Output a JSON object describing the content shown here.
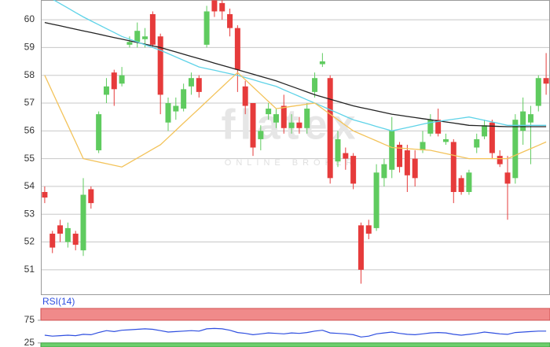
{
  "chart_data": [
    {
      "type": "candlestick",
      "watermark": "flatex",
      "watermark_subtitle": "ONLINE BROKER",
      "ylim": [
        50.09,
        60.71
      ],
      "yticks": [
        51,
        52,
        53,
        54,
        55,
        56,
        57,
        58,
        59,
        60
      ],
      "grid": true,
      "up_color": "#5fcb5f",
      "down_color": "#e63b3b",
      "open": [
        53.8,
        52.3,
        52.6,
        52.0,
        52.3,
        51.7,
        53.9,
        55.3,
        57.3,
        58.1,
        57.7,
        59.1,
        59.2,
        59.3,
        60.2,
        59.4,
        56.3,
        56.7,
        56.8,
        57.6,
        57.9,
        59.1,
        60.7,
        60.6,
        60.2,
        59.7,
        57.6,
        57.0,
        55.7,
        56.6,
        56.3,
        56.9,
        56.1,
        56.3,
        56.1,
        57.4,
        58.4,
        57.9,
        54.9,
        55.2,
        55.1,
        52.6,
        52.6,
        52.5,
        54.3,
        54.6,
        55.5,
        55.3,
        55.0,
        55.3,
        55.9,
        56.4,
        55.6,
        55.6,
        54.3,
        53.8,
        55.4,
        55.8,
        56.3,
        55.1,
        54.5,
        54.3,
        56.0,
        56.3,
        56.9,
        57.9
      ],
      "high": [
        54.0,
        52.4,
        52.8,
        52.7,
        52.4,
        54.3,
        54.0,
        56.7,
        57.9,
        58.2,
        58.3,
        59.4,
        59.9,
        59.7,
        60.3,
        59.5,
        57.2,
        57.2,
        57.7,
        58.1,
        58.0,
        60.5,
        60.7,
        60.7,
        60.4,
        59.8,
        57.8,
        57.0,
        56.2,
        57.0,
        56.8,
        57.3,
        56.6,
        56.5,
        57.0,
        58.1,
        58.8,
        58.0,
        56.0,
        55.4,
        55.2,
        52.7,
        52.8,
        54.8,
        55.0,
        56.5,
        55.6,
        55.5,
        55.3,
        56.0,
        56.6,
        56.8,
        55.9,
        55.7,
        54.4,
        54.6,
        55.9,
        56.4,
        56.4,
        55.3,
        55.1,
        56.6,
        57.2,
        56.9,
        58.0,
        58.8
      ],
      "low": [
        53.4,
        51.6,
        52.0,
        51.8,
        51.7,
        51.5,
        53.2,
        55.2,
        57.0,
        56.9,
        57.6,
        59.0,
        59.0,
        59.0,
        59.0,
        56.6,
        56.0,
        56.4,
        56.7,
        57.3,
        57.2,
        59.0,
        60.1,
        60.0,
        59.4,
        57.4,
        56.6,
        55.1,
        55.3,
        56.4,
        56.1,
        55.9,
        55.9,
        55.9,
        55.9,
        57.2,
        58.3,
        54.1,
        54.7,
        54.6,
        53.9,
        50.5,
        52.1,
        52.4,
        54.0,
        54.3,
        54.5,
        53.8,
        54.0,
        55.2,
        55.8,
        55.8,
        55.5,
        53.4,
        53.7,
        53.7,
        55.2,
        55.7,
        55.0,
        54.7,
        52.8,
        54.1,
        55.5,
        54.8,
        56.7,
        57.3
      ],
      "close": [
        53.6,
        51.8,
        52.3,
        52.5,
        51.9,
        53.7,
        53.4,
        56.6,
        57.6,
        57.5,
        58.0,
        59.2,
        59.6,
        59.4,
        59.1,
        57.3,
        57.0,
        56.9,
        57.5,
        57.9,
        57.4,
        60.3,
        60.3,
        60.3,
        59.7,
        58.2,
        56.9,
        55.4,
        56.0,
        56.8,
        56.6,
        56.1,
        56.3,
        56.1,
        56.8,
        57.9,
        58.5,
        54.3,
        55.7,
        55.0,
        54.1,
        51.0,
        52.3,
        54.5,
        54.8,
        56.0,
        54.7,
        54.4,
        54.3,
        55.6,
        56.4,
        55.9,
        55.7,
        53.8,
        53.8,
        54.5,
        55.7,
        56.2,
        55.2,
        54.8,
        54.1,
        56.4,
        56.7,
        56.6,
        57.9,
        57.7
      ],
      "series": [
        {
          "color": "#222222",
          "values": [
            59.9,
            59.84,
            59.78,
            59.72,
            59.66,
            59.6,
            59.54,
            59.48,
            59.42,
            59.36,
            59.3,
            59.24,
            59.18,
            59.12,
            59.06,
            59.0,
            58.92,
            58.84,
            58.76,
            58.68,
            58.6,
            58.52,
            58.44,
            58.36,
            58.28,
            58.2,
            58.12,
            58.04,
            57.96,
            57.88,
            57.8,
            57.7,
            57.6,
            57.5,
            57.4,
            57.3,
            57.22,
            57.14,
            57.06,
            56.98,
            56.9,
            56.84,
            56.78,
            56.72,
            56.66,
            56.6,
            56.56,
            56.52,
            56.48,
            56.44,
            56.4,
            56.36,
            56.32,
            56.28,
            56.24,
            56.2,
            56.19,
            56.18,
            56.17,
            56.16,
            56.15,
            56.15,
            56.15,
            56.15,
            56.15,
            56.15
          ]
        },
        {
          "color": "#5fd3e8",
          "values": [
            60.9,
            60.74,
            60.58,
            60.42,
            60.26,
            60.1,
            59.96,
            59.82,
            59.68,
            59.54,
            59.4,
            59.3,
            59.2,
            59.1,
            59.0,
            58.9,
            58.78,
            58.66,
            58.54,
            58.42,
            58.3,
            58.24,
            58.18,
            58.12,
            58.06,
            58.0,
            57.92,
            57.84,
            57.76,
            57.68,
            57.6,
            57.48,
            57.36,
            57.24,
            57.12,
            57.0,
            56.88,
            56.76,
            56.64,
            56.52,
            56.4,
            56.32,
            56.24,
            56.16,
            56.08,
            56.0,
            56.06,
            56.12,
            56.18,
            56.24,
            56.3,
            56.34,
            56.38,
            56.42,
            56.46,
            56.5,
            56.44,
            56.38,
            56.32,
            56.26,
            56.2,
            56.2,
            56.2,
            56.2,
            56.2,
            56.2
          ]
        },
        {
          "color": "#f3c35a",
          "values": [
            58.0,
            57.4,
            56.8,
            56.2,
            55.6,
            55.0,
            54.94,
            54.88,
            54.82,
            54.76,
            54.7,
            54.86,
            55.02,
            55.18,
            55.34,
            55.5,
            55.76,
            56.02,
            56.28,
            56.54,
            56.8,
            57.06,
            57.32,
            57.58,
            57.84,
            58.1,
            57.84,
            57.58,
            57.32,
            57.06,
            56.8,
            56.84,
            56.88,
            56.92,
            56.96,
            57.0,
            56.8,
            56.6,
            56.4,
            56.2,
            56.0,
            55.88,
            55.76,
            55.64,
            55.52,
            55.4,
            55.38,
            55.36,
            55.34,
            55.32,
            55.3,
            55.24,
            55.18,
            55.12,
            55.06,
            55.0,
            55.0,
            55.0,
            55.0,
            55.0,
            55.0,
            55.12,
            55.24,
            55.36,
            55.48,
            55.6
          ]
        }
      ]
    },
    {
      "type": "line",
      "title": "RSI(14)",
      "ylim": [
        16,
        101
      ],
      "yticks": [
        75,
        25
      ],
      "upper_band_color": "#f08a8a",
      "lower_band_color": "#6ccf6c",
      "series": [
        {
          "color": "#2f4fe0",
          "values": [
            42,
            40,
            41,
            42,
            41,
            44,
            43,
            48,
            52,
            50,
            53,
            54,
            55,
            56,
            55,
            52,
            49,
            50,
            51,
            52,
            51,
            56,
            57,
            56,
            53,
            48,
            46,
            43,
            45,
            47,
            46,
            45,
            47,
            46,
            48,
            51,
            53,
            47,
            46,
            45,
            43,
            38,
            40,
            45,
            47,
            49,
            46,
            44,
            43,
            45,
            47,
            48,
            47,
            44,
            42,
            44,
            46,
            49,
            47,
            45,
            44,
            48,
            49,
            50,
            51,
            51
          ]
        }
      ]
    }
  ]
}
